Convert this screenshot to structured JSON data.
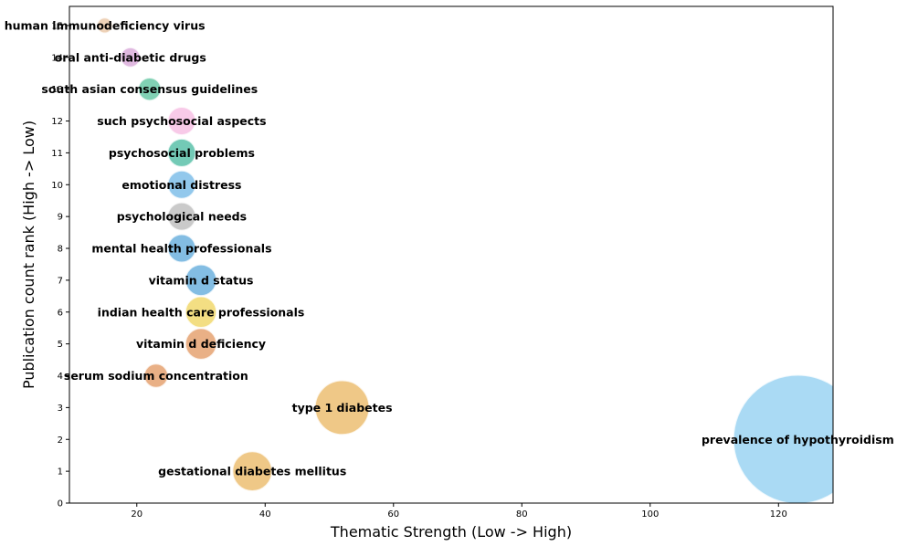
{
  "chart_data": {
    "type": "scatter",
    "xlabel": "Thematic Strength (Low -> High)",
    "ylabel": "Publication count rank (High -> Low)",
    "xlim": [
      9.5,
      128.5
    ],
    "ylim": [
      0,
      15.6
    ],
    "x_ticks": [
      20,
      40,
      60,
      80,
      100,
      120
    ],
    "y_ticks": [
      0,
      1,
      2,
      3,
      4,
      5,
      6,
      7,
      8,
      9,
      10,
      11,
      12,
      13,
      14,
      15
    ],
    "grid": false,
    "points": [
      {
        "label": "prevalence of hypothyroidism",
        "x": 123,
        "y": 2,
        "size": 123,
        "color": "#8ecdf0"
      },
      {
        "label": "gestational diabetes mellitus",
        "x": 38,
        "y": 1,
        "size": 38,
        "color": "#e9b55f"
      },
      {
        "label": "type 1 diabetes",
        "x": 52,
        "y": 3,
        "size": 52,
        "color": "#e9b55f"
      },
      {
        "label": "serum sodium concentration",
        "x": 23,
        "y": 4,
        "size": 23,
        "color": "#e2965e"
      },
      {
        "label": "vitamin d deficiency",
        "x": 30,
        "y": 5,
        "size": 30,
        "color": "#e2965e"
      },
      {
        "label": "indian health care professionals",
        "x": 30,
        "y": 6,
        "size": 30,
        "color": "#efd35a"
      },
      {
        "label": "vitamin d status",
        "x": 30,
        "y": 7,
        "size": 30,
        "color": "#5aa7da"
      },
      {
        "label": "mental health professionals",
        "x": 27,
        "y": 8,
        "size": 27,
        "color": "#5aa7da"
      },
      {
        "label": "psychological needs",
        "x": 27,
        "y": 9,
        "size": 27,
        "color": "#b8b8b8"
      },
      {
        "label": "emotional distress",
        "x": 27,
        "y": 10,
        "size": 27,
        "color": "#6db6e6"
      },
      {
        "label": "psychosocial problems",
        "x": 27,
        "y": 11,
        "size": 27,
        "color": "#44b89d"
      },
      {
        "label": "such psychosocial aspects",
        "x": 27,
        "y": 12,
        "size": 27,
        "color": "#f5b8e0"
      },
      {
        "label": "south asian consensus guidelines",
        "x": 22,
        "y": 13,
        "size": 22,
        "color": "#57c29b"
      },
      {
        "label": "oral anti-diabetic drugs",
        "x": 19,
        "y": 14,
        "size": 19,
        "color": "#d6a1d6"
      },
      {
        "label": "human immunodeficiency virus",
        "x": 15,
        "y": 15,
        "size": 15,
        "color": "#e8c3a0"
      }
    ]
  }
}
